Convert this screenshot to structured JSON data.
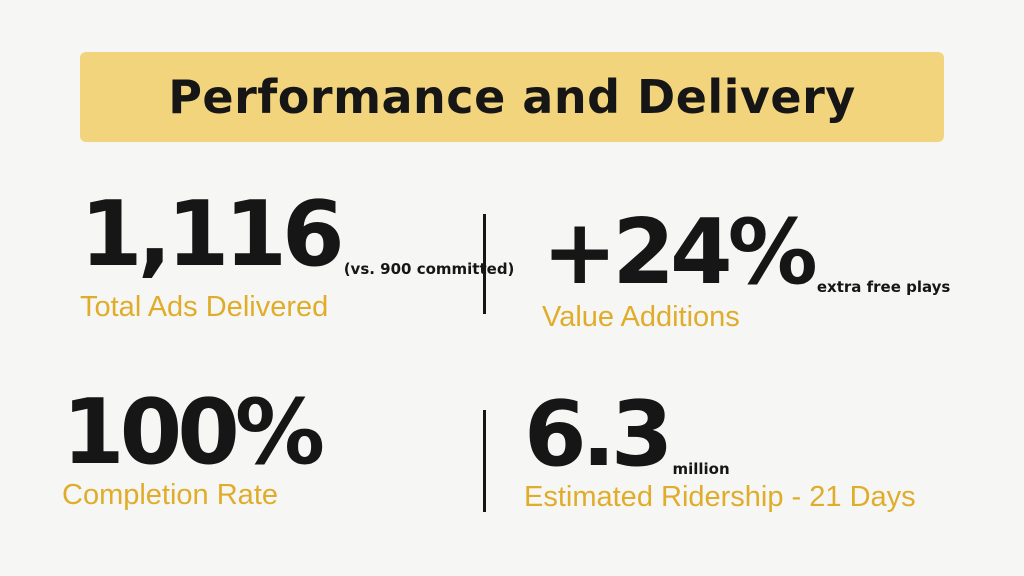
{
  "header": {
    "title": "Performance and Delivery"
  },
  "stats": [
    {
      "value": "1,116",
      "note": "(vs. 900 committed)",
      "label": "Total Ads Delivered"
    },
    {
      "value": "+24%",
      "note": "extra free plays",
      "label": "Value Additions"
    },
    {
      "value": "100%",
      "note": "",
      "label": "Completion Rate"
    },
    {
      "value": "6.3",
      "note": "million",
      "label": "Estimated Ridership - 21 Days"
    }
  ],
  "colors": {
    "banner": "#f2d47c",
    "accent": "#e0ad2b",
    "text": "#161616",
    "background": "#f6f6f4"
  }
}
